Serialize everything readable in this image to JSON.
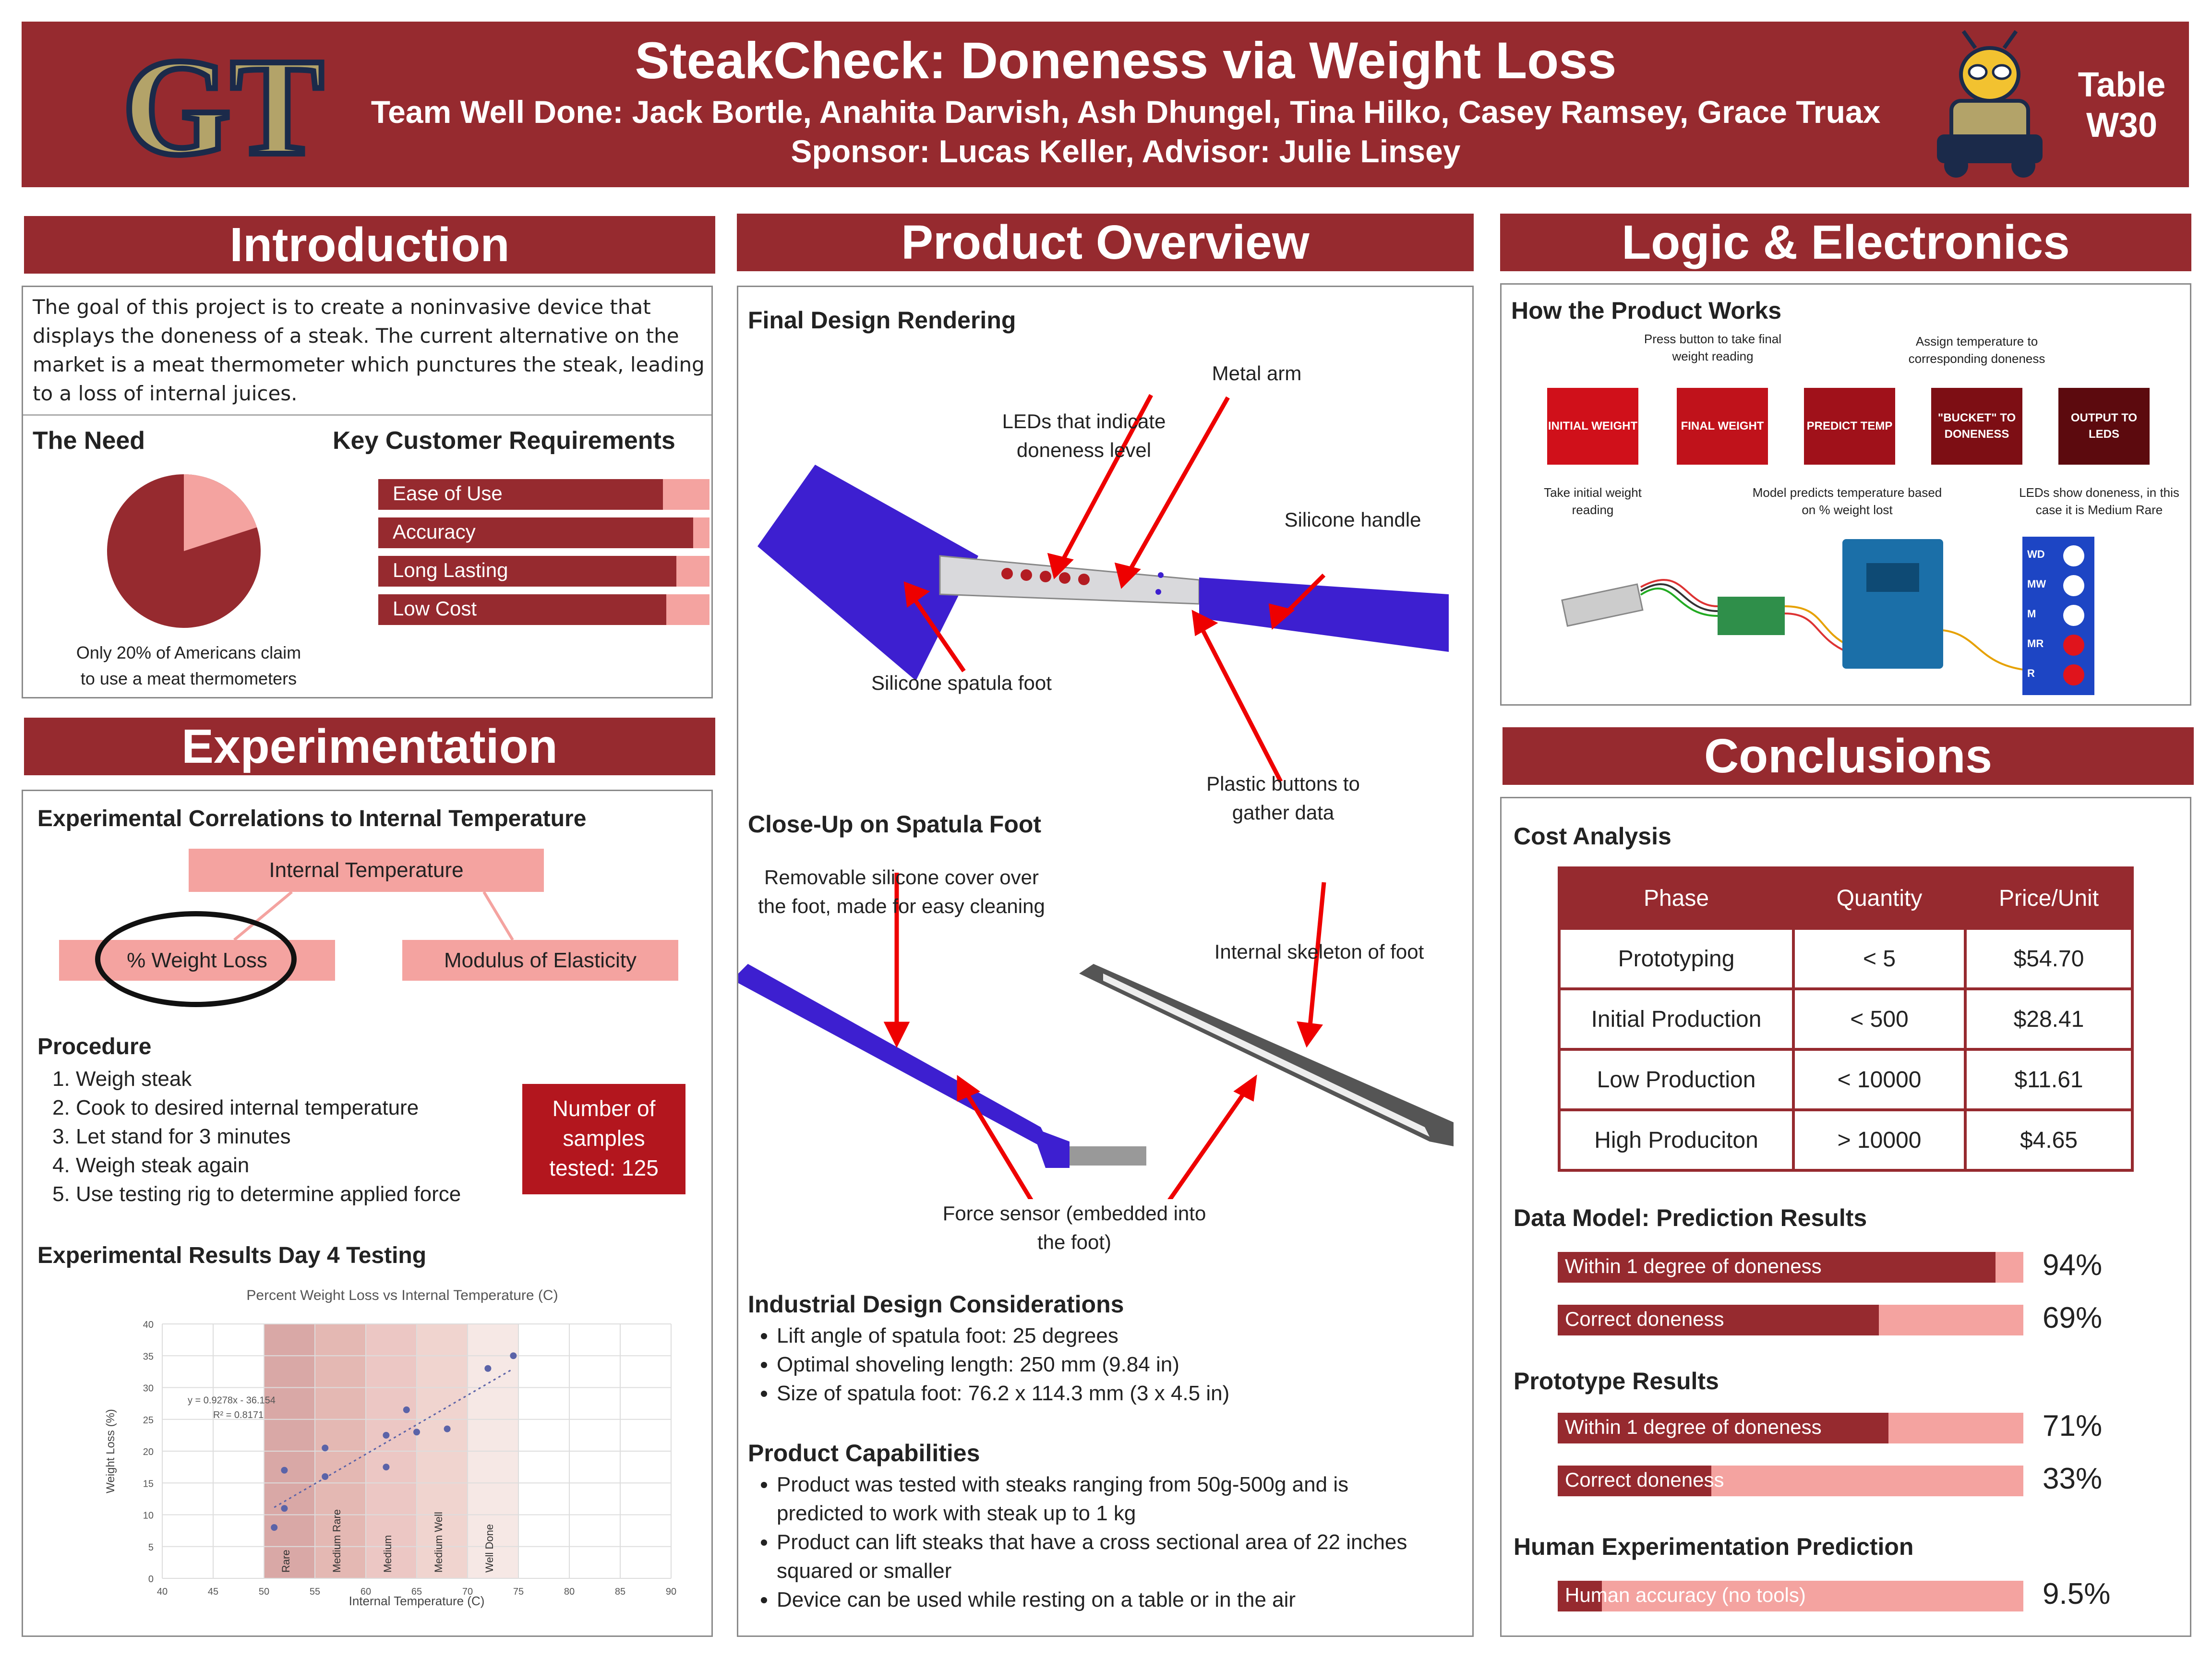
{
  "header": {
    "title": "SteakCheck: Doneness via Weight Loss",
    "team": "Team Well Done: Jack Bortle, Anahita Darvish, Ash Dhungel, Tina Hilko, Casey Ramsey, Grace Truax",
    "sponsor": "Sponsor: Lucas Keller, Advisor: Julie Linsey",
    "logo_text": "GT",
    "table_label": "Table\nW30"
  },
  "intro": {
    "heading": "Introduction",
    "body": "The goal of this project is to create a noninvasive device that displays the doneness of a steak. The current alternative on the market is a meat thermometer which punctures the steak, leading to a loss of internal juices.",
    "need_title": "The Need",
    "pie_caption": "Only 20% of Americans claim to use a meat thermometers",
    "pie_fraction": 0.2,
    "req_title": "Key Customer Requirements",
    "requirements": [
      {
        "label": "Ease of Use",
        "fill": 0.86
      },
      {
        "label": "Accuracy",
        "fill": 0.95
      },
      {
        "label": "Long Lasting",
        "fill": 0.9
      },
      {
        "label": "Low Cost",
        "fill": 0.87
      }
    ]
  },
  "experimentation": {
    "heading": "Experimentation",
    "corr_title": "Experimental Correlations to Internal Temperature",
    "internal_temp": "Internal Temperature",
    "weight_loss": "% Weight Loss",
    "modulus": "Modulus of Elasticity",
    "procedure_title": "Procedure",
    "steps": [
      "Weigh steak",
      "Cook to desired internal temperature",
      "Let stand for 3 minutes",
      "Weigh steak again",
      "Use testing rig to determine applied force"
    ],
    "samples": "Number of samples tested: 125",
    "results_title": "Experimental Results Day 4 Testing"
  },
  "product": {
    "heading": "Product Overview",
    "render_title": "Final Design Rendering",
    "labels": {
      "metal_arm": "Metal arm",
      "leds": "LEDs that indicate doneness level",
      "handle": "Silicone handle",
      "foot": "Silicone spatula foot",
      "buttons": "Plastic buttons to gather data",
      "closeup_title": "Close-Up on Spatula Foot",
      "cover": "Removable silicone cover over the foot, made for easy cleaning",
      "skeleton": "Internal skeleton of foot",
      "force": "Force sensor (embedded into the foot)"
    },
    "design_title": "Industrial Design Considerations",
    "design_items": [
      "Lift angle of spatula foot: 25 degrees",
      "Optimal shoveling length: 250 mm (9.84 in)",
      "Size of spatula foot: 76.2 x 114.3 mm (3 x  4.5 in)"
    ],
    "cap_title": "Product Capabilities",
    "cap_items": [
      "Product was tested with steaks ranging from 50g-500g and is predicted to work with steak up to 1 kg",
      "Product can lift steaks that have a cross sectional area of 22 inches squared or smaller",
      "Device can be used while resting on a table or in the air"
    ]
  },
  "logic": {
    "heading": "Logic & Electronics",
    "how_title": "How the Product Works",
    "top_notes": [
      "Press button to take final weight reading",
      "Assign temperature to corresponding doneness"
    ],
    "steps": [
      {
        "label": "INITIAL WEIGHT",
        "color": "#d0101a"
      },
      {
        "label": "FINAL WEIGHT",
        "color": "#c0121b"
      },
      {
        "label": "PREDICT TEMP",
        "color": "#a0111a"
      },
      {
        "label": "\"BUCKET\" TO DONENESS",
        "color": "#7d0e14"
      },
      {
        "label": "OUTPUT TO LEDS",
        "color": "#5c0a0e"
      }
    ],
    "bottom_notes": [
      "Take initial weight reading",
      "Model predicts temperature based on % weight lost",
      "LEDs show doneness, in this case it is Medium Rare"
    ],
    "led_labels": [
      "WD",
      "MW",
      "M",
      "MR",
      "R"
    ],
    "led_on": [
      false,
      false,
      false,
      true,
      true
    ]
  },
  "conclusions": {
    "heading": "Conclusions",
    "cost_title": "Cost Analysis",
    "cost_headers": [
      "Phase",
      "Quantity",
      "Price/Unit"
    ],
    "cost_rows": [
      [
        "Prototyping",
        "< 5",
        "$54.70"
      ],
      [
        "Initial Production",
        "< 500",
        "$28.41"
      ],
      [
        "Low Production",
        "< 10000",
        "$11.61"
      ],
      [
        "High Produciton",
        "> 10000",
        "$4.65"
      ]
    ],
    "model_title": "Data Model: Prediction Results",
    "model_bars": [
      {
        "label": "Within 1 degree of doneness",
        "pct": "94%",
        "value": 0.94
      },
      {
        "label": "Correct doneness",
        "pct": "69%",
        "value": 0.69
      }
    ],
    "proto_title": "Prototype Results",
    "proto_bars": [
      {
        "label": "Within 1 degree of doneness",
        "pct": "71%",
        "value": 0.71
      },
      {
        "label": "Correct doneness",
        "pct": "33%",
        "value": 0.33
      }
    ],
    "human_title": "Human Experimentation Prediction",
    "human_bars": [
      {
        "label": "Human accuracy (no tools)",
        "pct": "9.5%",
        "value": 0.095
      }
    ]
  },
  "chart_data": {
    "type": "scatter",
    "title": "Percent Weight Loss vs Internal Temperature (C)",
    "xlabel": "Internal Temperature (C)",
    "ylabel": "Weight Loss (%)",
    "xlim": [
      40,
      90
    ],
    "ylim": [
      0,
      40
    ],
    "xticks": [
      40,
      45,
      50,
      55,
      60,
      65,
      70,
      75,
      80,
      85,
      90
    ],
    "yticks": [
      0,
      5,
      10,
      15,
      20,
      25,
      30,
      35,
      40
    ],
    "bands": [
      {
        "label": "Rare",
        "from": 50,
        "to": 55,
        "color": "#d9a8a6"
      },
      {
        "label": "Medium Rare",
        "from": 55,
        "to": 60,
        "color": "#e4b8b3"
      },
      {
        "label": "Medium",
        "from": 60,
        "to": 65,
        "color": "#ecc7c4"
      },
      {
        "label": "Medium Well",
        "from": 65,
        "to": 70,
        "color": "#f0d4cf"
      },
      {
        "label": "Well Done",
        "from": 70,
        "to": 75,
        "color": "#f6e8e5"
      }
    ],
    "points": [
      [
        51,
        8
      ],
      [
        52,
        11
      ],
      [
        52,
        17
      ],
      [
        56,
        20.5
      ],
      [
        56,
        16
      ],
      [
        62,
        17.5
      ],
      [
        62,
        22.5
      ],
      [
        64,
        26.5
      ],
      [
        65,
        23
      ],
      [
        68,
        23.5
      ],
      [
        72,
        33
      ],
      [
        74.5,
        35
      ]
    ],
    "trendline": {
      "equation": "y = 0.9278x - 36.154",
      "r2": "R² = 0.8171",
      "slope": 0.9278,
      "intercept": -36.154,
      "from": 51,
      "to": 74.5
    }
  }
}
